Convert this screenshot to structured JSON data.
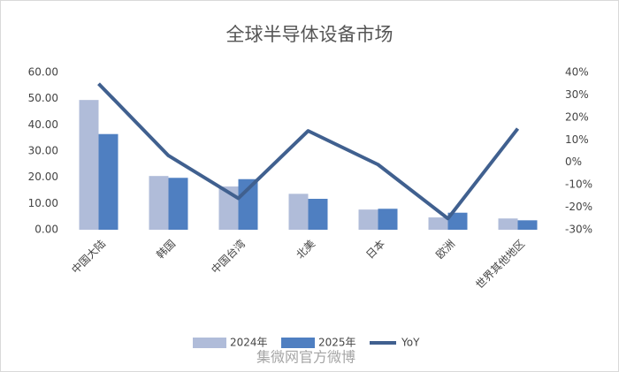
{
  "chart_data": {
    "type": "bar",
    "title": "全球半导体设备市场",
    "categories": [
      "中国大陆",
      "韩国",
      "中国台湾",
      "北美",
      "日本",
      "欧洲",
      "世界其他地区"
    ],
    "series": [
      {
        "name": "2024年",
        "color": "#b0bcd9",
        "values": [
          49.5,
          20.5,
          16.5,
          13.7,
          7.7,
          4.7,
          4.3
        ]
      },
      {
        "name": "2025年",
        "color": "#4f7fc1",
        "values": [
          36.5,
          19.8,
          19.3,
          11.8,
          8.0,
          6.5,
          3.6
        ]
      },
      {
        "name": "YoY",
        "color": "#40608f",
        "type": "line",
        "axis": "y2",
        "values": [
          35,
          3,
          -16,
          14,
          -1,
          -25,
          15
        ]
      }
    ],
    "ylim": [
      0,
      60
    ],
    "yticks": [
      {
        "value": 0,
        "label": "0.00"
      },
      {
        "value": 10,
        "label": "10.00"
      },
      {
        "value": 20,
        "label": "20.00"
      },
      {
        "value": 30,
        "label": "30.00"
      },
      {
        "value": 40,
        "label": "40.00"
      },
      {
        "value": 50,
        "label": "50.00"
      },
      {
        "value": 60,
        "label": "60.00"
      }
    ],
    "y2lim": [
      -30,
      40
    ],
    "y2ticks": [
      {
        "value": -30,
        "label": "-30%"
      },
      {
        "value": -20,
        "label": "-20%"
      },
      {
        "value": -10,
        "label": "-10%"
      },
      {
        "value": 0,
        "label": "0%"
      },
      {
        "value": 10,
        "label": "10%"
      },
      {
        "value": 20,
        "label": "20%"
      },
      {
        "value": 30,
        "label": "30%"
      },
      {
        "value": 40,
        "label": "40%"
      }
    ],
    "grid": false,
    "legend": "bottom",
    "watermark": "集微网官方微博"
  }
}
